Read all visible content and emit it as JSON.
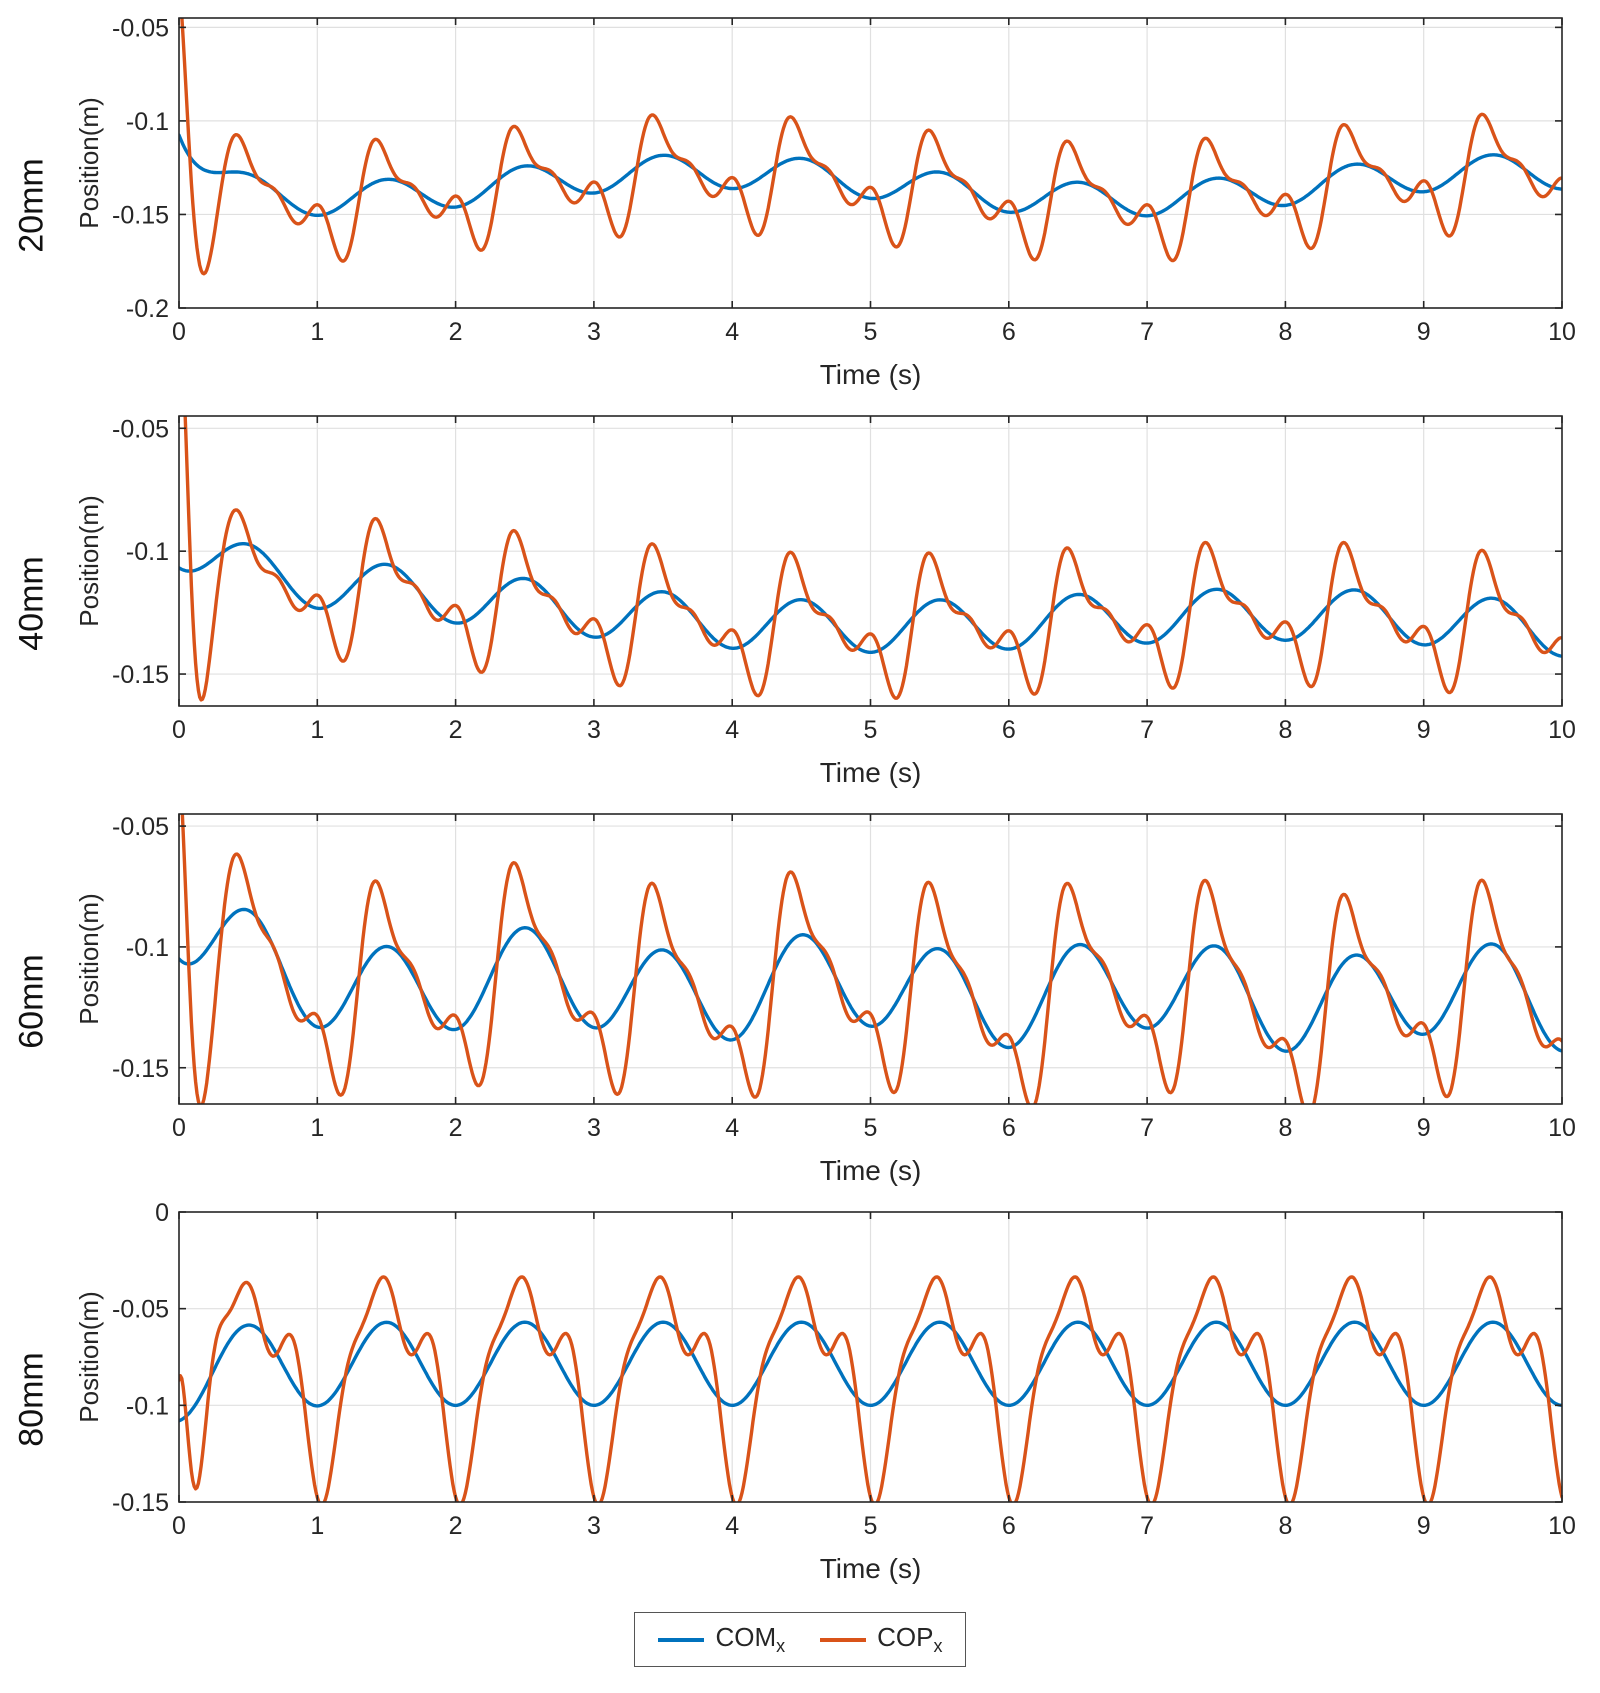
{
  "page": {
    "background": "#ffffff",
    "text_color": "#262626",
    "axis_color": "#262626",
    "grid_color": "#e0e0e0"
  },
  "legend": {
    "items": [
      {
        "name": "COM",
        "sub": "x",
        "color": "#0072BD"
      },
      {
        "name": "COP",
        "sub": "x",
        "color": "#D95319"
      }
    ]
  },
  "chart_data": [
    {
      "type": "line",
      "row_label": "20mm",
      "xlabel": "Time (s)",
      "ylabel": "Position(m)",
      "xlim": [
        0,
        10
      ],
      "ylim": [
        -0.2,
        -0.045
      ],
      "xticks": [
        0,
        1,
        2,
        3,
        4,
        5,
        6,
        7,
        8,
        9,
        10
      ],
      "xtick_labels": [
        "0",
        "1",
        "2",
        "3",
        "4",
        "5",
        "6",
        "7",
        "8",
        "9",
        "10"
      ],
      "yticks": [
        -0.05,
        -0.1,
        -0.15,
        -0.2
      ],
      "ytick_labels": [
        "-0.05",
        "-0.1",
        "-0.15",
        "-0.2"
      ],
      "grid": true,
      "legend_position": "none",
      "sample_dt": 0.01,
      "series": [
        {
          "name": "COM_x",
          "color": "#0072BD",
          "width": 3.4,
          "keypoints": [
            [
              0,
              -0.103
            ],
            [
              0.5,
              -0.127
            ],
            [
              1.0,
              -0.122
            ],
            [
              2.1,
              -0.151
            ],
            [
              2.8,
              -0.128
            ],
            [
              3.6,
              -0.125
            ],
            [
              4.65,
              -0.125
            ],
            [
              5.2,
              -0.147
            ],
            [
              6.1,
              -0.145
            ],
            [
              6.7,
              -0.129
            ],
            [
              7.7,
              -0.12
            ],
            [
              8.7,
              -0.13
            ],
            [
              9.4,
              -0.147
            ],
            [
              10,
              -0.143
            ]
          ],
          "model": {
            "base": -0.1345,
            "slope": 0,
            "decay": {
              "A": 0.0405,
              "tau": 0.22
            },
            "harmonics": [
              [
                1.0,
                0.009,
                4.71
              ],
              [
                0.17,
                0.0075,
                3.8
              ]
            ]
          }
        },
        {
          "name": "COP_x",
          "color": "#D95319",
          "width": 3.4,
          "keypoints": [
            [
              0.07,
              -0.045
            ],
            [
              0.2,
              -0.155
            ],
            [
              1.0,
              -0.088
            ],
            [
              2.0,
              -0.173
            ],
            [
              2.85,
              -0.1
            ],
            [
              3.7,
              -0.117
            ],
            [
              4.7,
              -0.097
            ],
            [
              5.35,
              -0.168
            ],
            [
              6.1,
              -0.164
            ],
            [
              6.7,
              -0.113
            ],
            [
              7.75,
              -0.093
            ],
            [
              8.7,
              -0.105
            ],
            [
              9.4,
              -0.163
            ],
            [
              10,
              -0.15
            ]
          ],
          "model": {
            "base": -0.136,
            "slope": 0,
            "decay": {
              "A": 0.012,
              "tau": 0.25
            },
            "harmonics": [
              [
                1.0,
                0.019,
                4.5
              ],
              [
                2.0,
                0.013,
                2.2
              ],
              [
                3.0,
                0.009,
                0.8
              ],
              [
                0.17,
                0.0075,
                3.8
              ]
            ],
            "transient": {
              "A": 0.11,
              "tau": 0.09,
              "f": 2.8,
              "phi": 1.2
            }
          }
        }
      ]
    },
    {
      "type": "line",
      "row_label": "40mm",
      "xlabel": "Time (s)",
      "ylabel": "Position(m)",
      "xlim": [
        0,
        10
      ],
      "ylim": [
        -0.163,
        -0.045
      ],
      "xticks": [
        0,
        1,
        2,
        3,
        4,
        5,
        6,
        7,
        8,
        9,
        10
      ],
      "xtick_labels": [
        "0",
        "1",
        "2",
        "3",
        "4",
        "5",
        "6",
        "7",
        "8",
        "9",
        "10"
      ],
      "yticks": [
        -0.05,
        -0.1,
        -0.15
      ],
      "ytick_labels": [
        "-0.05",
        "-0.1",
        "-0.15"
      ],
      "grid": true,
      "legend_position": "none",
      "sample_dt": 0.01,
      "series": [
        {
          "name": "COM_x",
          "color": "#0072BD",
          "width": 3.4,
          "keypoints": [
            [
              0,
              -0.105
            ],
            [
              1.0,
              -0.118
            ],
            [
              1.45,
              -0.105
            ],
            [
              2.1,
              -0.135
            ],
            [
              2.55,
              -0.115
            ],
            [
              3.55,
              -0.12
            ],
            [
              4.55,
              -0.122
            ],
            [
              5.6,
              -0.123
            ],
            [
              6.5,
              -0.121
            ],
            [
              7.6,
              -0.108
            ],
            [
              8.5,
              -0.118
            ],
            [
              9.5,
              -0.125
            ],
            [
              10,
              -0.152
            ]
          ],
          "model": {
            "base": -0.1185,
            "slope": -0.0015,
            "decay": {
              "A": 0.018,
              "tau": 0.5
            },
            "harmonics": [
              [
                1.0,
                0.0105,
                4.71
              ],
              [
                0.13,
                0.005,
                1.0
              ]
            ]
          }
        },
        {
          "name": "COP_x",
          "color": "#D95319",
          "width": 3.4,
          "keypoints": [
            [
              0.05,
              -0.045
            ],
            [
              0.15,
              -0.145
            ],
            [
              0.28,
              -0.062
            ],
            [
              1.4,
              -0.095
            ],
            [
              2.2,
              -0.157
            ],
            [
              2.55,
              -0.103
            ],
            [
              3.1,
              -0.145
            ],
            [
              4.55,
              -0.105
            ],
            [
              5.1,
              -0.155
            ],
            [
              6.5,
              -0.104
            ],
            [
              7.9,
              -0.093
            ],
            [
              9.5,
              -0.107
            ],
            [
              10,
              -0.16
            ]
          ],
          "model": {
            "base": -0.119,
            "slope": -0.0015,
            "decay": {
              "A": 0.008,
              "tau": 0.3
            },
            "harmonics": [
              [
                1.0,
                0.017,
                4.5
              ],
              [
                2.0,
                0.012,
                2.3
              ],
              [
                3.0,
                0.008,
                0.7
              ],
              [
                0.13,
                0.005,
                1.0
              ]
            ],
            "transient": {
              "A": 0.12,
              "tau": 0.1,
              "f": 3.3,
              "phi": 1.1
            }
          }
        }
      ]
    },
    {
      "type": "line",
      "row_label": "60mm",
      "xlabel": "Time (s)",
      "ylabel": "Position(m)",
      "xlim": [
        0,
        10
      ],
      "ylim": [
        -0.165,
        -0.045
      ],
      "xticks": [
        0,
        1,
        2,
        3,
        4,
        5,
        6,
        7,
        8,
        9,
        10
      ],
      "xtick_labels": [
        "0",
        "1",
        "2",
        "3",
        "4",
        "5",
        "6",
        "7",
        "8",
        "9",
        "10"
      ],
      "yticks": [
        -0.05,
        -0.1,
        -0.15
      ],
      "ytick_labels": [
        "-0.05",
        "-0.1",
        "-0.15"
      ],
      "grid": true,
      "legend_position": "none",
      "sample_dt": 0.01,
      "series": [
        {
          "name": "COM_x",
          "color": "#0072BD",
          "width": 3.4,
          "keypoints": [
            [
              0,
              -0.106
            ],
            [
              0.55,
              -0.098
            ],
            [
              1.1,
              -0.132
            ],
            [
              1.55,
              -0.093
            ],
            [
              2.05,
              -0.128
            ],
            [
              2.55,
              -0.106
            ],
            [
              3.05,
              -0.135
            ],
            [
              3.55,
              -0.093
            ],
            [
              4.55,
              -0.097
            ],
            [
              5.5,
              -0.095
            ],
            [
              6.5,
              -0.099
            ],
            [
              7.55,
              -0.092
            ],
            [
              8.5,
              -0.098
            ],
            [
              9.1,
              -0.135
            ],
            [
              9.55,
              -0.105
            ],
            [
              10,
              -0.138
            ]
          ],
          "model": {
            "base": -0.1135,
            "slope": -0.0008,
            "decay": {
              "A": 0.025,
              "tau": 0.35
            },
            "harmonics": [
              [
                1.0,
                0.019,
                4.71
              ],
              [
                0.45,
                0.0045,
                0.6
              ]
            ]
          }
        },
        {
          "name": "COP_x",
          "color": "#D95319",
          "width": 3.4,
          "keypoints": [
            [
              0.05,
              -0.045
            ],
            [
              0.3,
              -0.12
            ],
            [
              0.55,
              -0.085
            ],
            [
              0.9,
              -0.16
            ],
            [
              1.5,
              -0.068
            ],
            [
              2.0,
              -0.145
            ],
            [
              2.5,
              -0.078
            ],
            [
              3.0,
              -0.158
            ],
            [
              3.6,
              -0.07
            ],
            [
              4.5,
              -0.075
            ],
            [
              5.55,
              -0.07
            ],
            [
              6.5,
              -0.073
            ],
            [
              7.6,
              -0.068
            ],
            [
              8.5,
              -0.072
            ],
            [
              9.3,
              -0.165
            ],
            [
              9.55,
              -0.08
            ],
            [
              10,
              -0.165
            ]
          ],
          "model": {
            "base": -0.1135,
            "slope": -0.001,
            "decay": {
              "A": 0.006,
              "tau": 0.3
            },
            "harmonics": [
              [
                1.0,
                0.032,
                4.55
              ],
              [
                2.0,
                0.016,
                2.4
              ],
              [
                3.0,
                0.01,
                0.9
              ],
              [
                0.45,
                0.0045,
                0.6
              ]
            ],
            "transient": {
              "A": 0.1,
              "tau": 0.09,
              "f": 3.2,
              "phi": 1.2
            }
          }
        }
      ]
    },
    {
      "type": "line",
      "row_label": "80mm",
      "xlabel": "Time (s)",
      "ylabel": "Position(m)",
      "xlim": [
        0,
        10
      ],
      "ylim": [
        -0.15,
        0
      ],
      "xticks": [
        0,
        1,
        2,
        3,
        4,
        5,
        6,
        7,
        8,
        9,
        10
      ],
      "xtick_labels": [
        "0",
        "1",
        "2",
        "3",
        "4",
        "5",
        "6",
        "7",
        "8",
        "9",
        "10"
      ],
      "yticks": [
        0,
        -0.05,
        -0.1,
        -0.15
      ],
      "ytick_labels": [
        "0",
        "-0.05",
        "-0.1",
        "-0.15"
      ],
      "grid": true,
      "legend_position": "none",
      "sample_dt": 0.01,
      "series": [
        {
          "name": "COM_x",
          "color": "#0072BD",
          "width": 3.4,
          "keypoints": [
            [
              0,
              -0.103
            ],
            [
              0.55,
              -0.075
            ],
            [
              1.0,
              -0.1
            ],
            [
              1.5,
              -0.057
            ],
            [
              2.5,
              -0.056
            ],
            [
              3.5,
              -0.057
            ],
            [
              4.5,
              -0.058
            ],
            [
              5.5,
              -0.056
            ],
            [
              6.5,
              -0.058
            ],
            [
              7.5,
              -0.056
            ],
            [
              8.5,
              -0.057
            ],
            [
              9.5,
              -0.058
            ],
            [
              10,
              -0.1
            ]
          ],
          "model": {
            "base": -0.0785,
            "slope": 0,
            "decay": {
              "A": -0.008,
              "tau": 0.3
            },
            "harmonics": [
              [
                1.0,
                0.0215,
                4.71
              ]
            ]
          }
        },
        {
          "name": "COP_x",
          "color": "#D95319",
          "width": 3.4,
          "keypoints": [
            [
              0.07,
              -0.143
            ],
            [
              0.55,
              -0.05
            ],
            [
              0.85,
              -0.13
            ],
            [
              1.5,
              -0.03
            ],
            [
              1.9,
              -0.12
            ],
            [
              2.5,
              -0.032
            ],
            [
              3.5,
              -0.033
            ],
            [
              4.5,
              -0.035
            ],
            [
              5.5,
              -0.032
            ],
            [
              6.5,
              -0.03
            ],
            [
              7.5,
              -0.033
            ],
            [
              8.5,
              -0.03
            ],
            [
              9.5,
              -0.03
            ],
            [
              9.9,
              -0.135
            ],
            [
              10,
              -0.05
            ]
          ],
          "model": {
            "base": -0.08,
            "slope": 0,
            "decay": {
              "A": -0.01,
              "tau": 0.25
            },
            "harmonics": [
              [
                1.0,
                0.044,
                4.6
              ],
              [
                2.0,
                0.018,
                3.8
              ],
              [
                3.0,
                0.013,
                4.5
              ]
            ],
            "transient": {
              "A": 0.09,
              "tau": 0.12,
              "f": 3.5,
              "phi": 0.9
            }
          }
        }
      ]
    }
  ]
}
